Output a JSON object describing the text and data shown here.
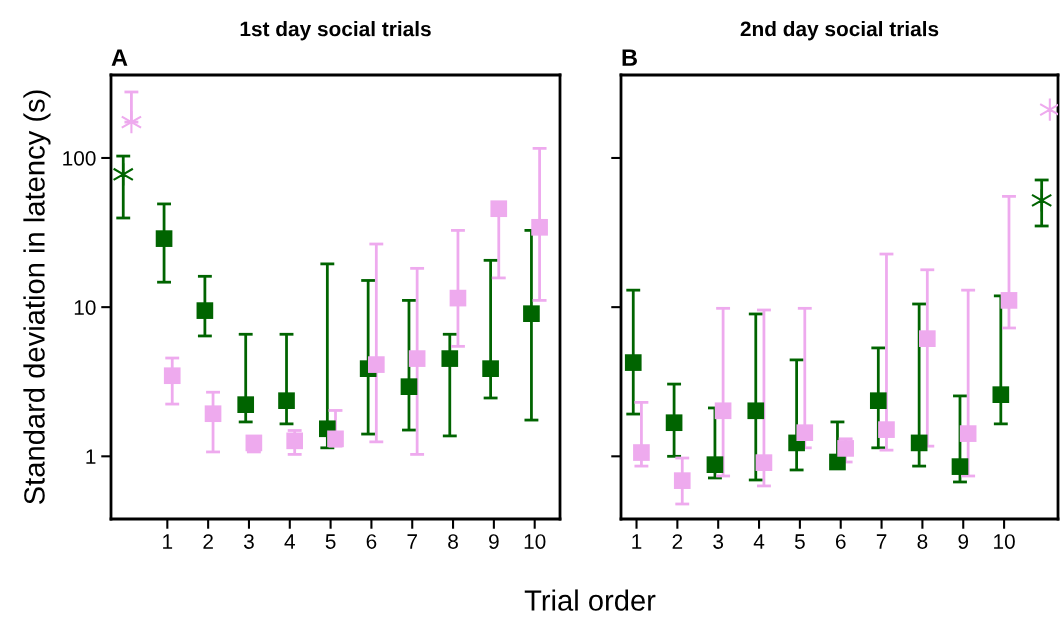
{
  "chart_data": [
    {
      "type": "scatter",
      "title": "1st day social trials",
      "annotations": [
        "A"
      ],
      "xlabel": "Trial order",
      "ylabel": "Standard deviation in latency (s)",
      "categories": [
        null,
        "1",
        "2",
        "3",
        "4",
        "5",
        "6",
        "7",
        "8",
        "9",
        "10"
      ],
      "log": "y",
      "ylim": [
        0.38,
        360
      ],
      "yticks": [
        1,
        10,
        100
      ],
      "grid": false,
      "legend": false,
      "series": [
        {
          "color": "#006400",
          "marker": "square",
          "values": [
            null,
            28.8,
            9.48,
            2.22,
            2.36,
            1.53,
            3.87,
            2.93,
            4.52,
            3.87,
            9.04
          ],
          "errors": [
            null,
            [
              14.7,
              49.2
            ],
            [
              6.41,
              16.1
            ],
            [
              1.7,
              6.58
            ],
            [
              1.65,
              6.58
            ],
            [
              1.14,
              19.5
            ],
            [
              1.41,
              15.1
            ],
            [
              1.5,
              11.1
            ],
            [
              1.37,
              6.58
            ],
            [
              2.46,
              20.6
            ],
            [
              1.75,
              32.7
            ]
          ]
        },
        {
          "color": "#eeaaee",
          "marker": "square",
          "values": [
            null,
            3.47,
            1.93,
            1.23,
            1.27,
            1.31,
            4.12,
            4.52,
            11.5,
            45.7,
            34.3
          ],
          "errors": [
            null,
            [
              2.24,
              4.56
            ],
            [
              1.07,
              2.69
            ],
            [
              1.07,
              1.23
            ],
            [
              1.03,
              1.49
            ],
            [
              1.17,
              2.03
            ],
            [
              1.25,
              26.5
            ],
            [
              1.03,
              18.2
            ],
            [
              5.46,
              32.7
            ],
            [
              15.7,
              45.7
            ],
            [
              11.1,
              116
            ]
          ]
        },
        {
          "color": "#006400",
          "marker": "cross",
          "values": [
            77.7,
            null,
            null,
            null,
            null,
            null,
            null,
            null,
            null,
            null,
            null
          ],
          "errors": [
            [
              39.6,
              103
            ],
            null,
            null,
            null,
            null,
            null,
            null,
            null,
            null,
            null,
            null
          ]
        },
        {
          "color": "#eeaaee",
          "marker": "cross",
          "values": [
            174,
            null,
            null,
            null,
            null,
            null,
            null,
            null,
            null,
            null,
            null
          ],
          "errors": [
            [
              174,
              277
            ],
            null,
            null,
            null,
            null,
            null,
            null,
            null,
            null,
            null,
            null
          ]
        }
      ]
    },
    {
      "type": "scatter",
      "title": "2nd day social trials",
      "annotations": [
        "B"
      ],
      "tick_labels": "x",
      "categories": [
        "1",
        "2",
        "3",
        "4",
        "5",
        "6",
        "7",
        "8",
        "9",
        "10",
        null
      ],
      "log": "y",
      "ylim": [
        0.38,
        360
      ],
      "yticks": [
        1,
        10,
        100
      ],
      "grid": false,
      "legend": false,
      "series": [
        {
          "color": "#006400",
          "marker": "square",
          "values": [
            4.25,
            1.68,
            0.879,
            2.02,
            1.23,
            0.916,
            2.36,
            1.23,
            0.853,
            2.59,
            null
          ],
          "errors": [
            [
              1.92,
              13.0
            ],
            [
              1.0,
              3.05
            ],
            [
              0.716,
              2.11
            ],
            [
              0.694,
              9.0
            ],
            [
              0.81,
              4.43
            ],
            [
              0.916,
              1.7
            ],
            [
              1.14,
              5.33
            ],
            [
              0.86,
              10.5
            ],
            [
              0.673,
              2.54
            ],
            [
              1.65,
              11.9
            ],
            null
          ]
        },
        {
          "color": "#eeaaee",
          "marker": "square",
          "values": [
            1.06,
            0.687,
            2.02,
            0.907,
            1.44,
            1.13,
            1.51,
            6.15,
            1.42,
            11.1,
            null
          ],
          "errors": [
            [
              0.86,
              2.3
            ],
            [
              0.479,
              0.974
            ],
            [
              0.738,
              9.82
            ],
            [
              0.633,
              9.57
            ],
            [
              1.14,
              9.82
            ],
            [
              0.916,
              1.31
            ],
            [
              1.1,
              22.7
            ],
            [
              1.17,
              17.8
            ],
            [
              0.738,
              13.0
            ],
            [
              7.25,
              55.3
            ],
            null
          ]
        },
        {
          "color": "#006400",
          "marker": "cross",
          "values": [
            null,
            null,
            null,
            null,
            null,
            null,
            null,
            null,
            null,
            null,
            52.0
          ],
          "errors": [
            null,
            null,
            null,
            null,
            null,
            null,
            null,
            null,
            null,
            null,
            [
              35.0,
              71.2
            ]
          ]
        },
        {
          "color": "#eeaaee",
          "marker": "cross",
          "values": [
            null,
            null,
            null,
            null,
            null,
            null,
            null,
            null,
            null,
            null,
            211
          ]
        }
      ]
    }
  ]
}
